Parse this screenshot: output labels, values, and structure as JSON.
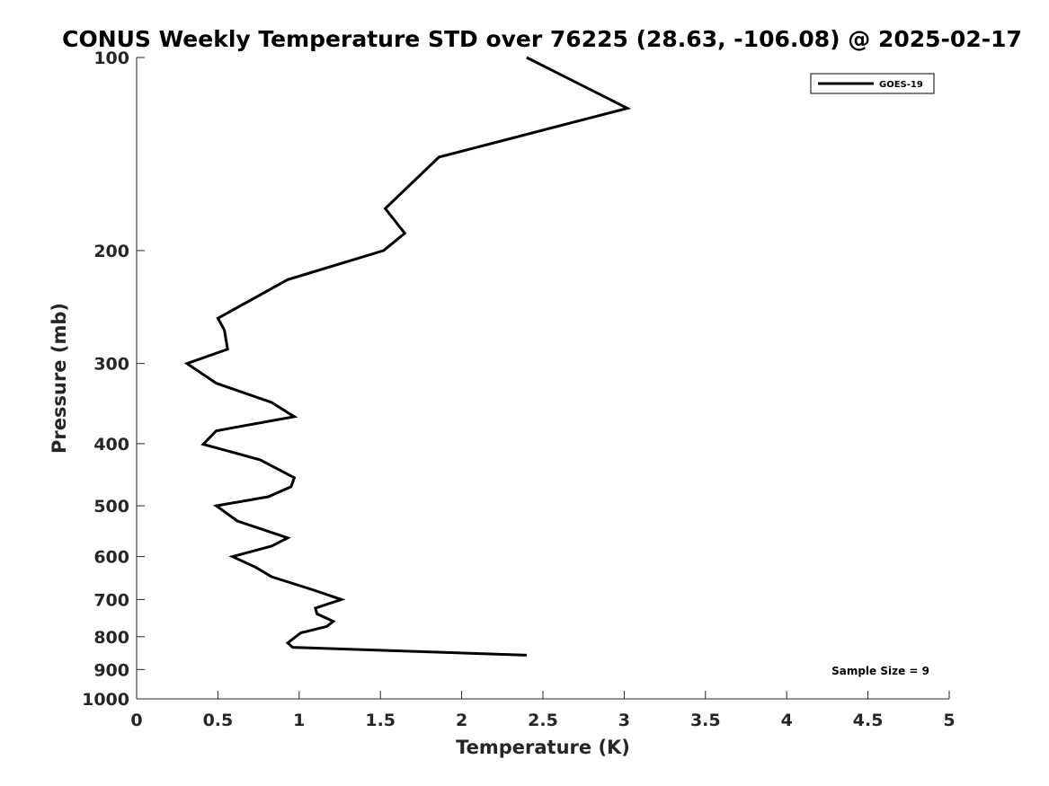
{
  "chart_data": {
    "type": "line",
    "title": "CONUS Weekly Temperature STD over 76225 (28.63, -106.08) @ 2025-02-17",
    "xlabel": "Temperature (K)",
    "ylabel": "Pressure (mb)",
    "xlim": [
      0,
      5
    ],
    "ylim": [
      100,
      1000
    ],
    "yscale": "log",
    "y_reversed": true,
    "x_ticks": [
      0,
      0.5,
      1,
      1.5,
      2,
      2.5,
      3,
      3.5,
      4,
      4.5,
      5
    ],
    "x_tick_labels": [
      "0",
      "0.5",
      "1",
      "1.5",
      "2",
      "2.5",
      "3",
      "3.5",
      "4",
      "4.5",
      "5"
    ],
    "y_ticks": [
      100,
      200,
      300,
      400,
      500,
      600,
      700,
      800,
      900,
      1000
    ],
    "y_tick_labels": [
      "100",
      "200",
      "300",
      "400",
      "500",
      "600",
      "700",
      "800",
      "900",
      "1000"
    ],
    "grid": false,
    "legend_position": "top-right",
    "annotation": "Sample Size = 9",
    "line_color": "#000000",
    "series": [
      {
        "name": "GOES-19",
        "x": [
          2.4,
          3.02,
          1.86,
          1.53,
          1.65,
          1.52,
          0.93,
          0.5,
          0.54,
          0.56,
          0.31,
          0.49,
          0.83,
          0.97,
          0.49,
          0.41,
          0.76,
          0.97,
          0.95,
          0.81,
          0.49,
          0.62,
          0.93,
          0.83,
          0.59,
          0.73,
          0.83,
          1.09,
          1.26,
          1.1,
          1.11,
          1.21,
          1.17,
          1.01,
          0.93,
          0.96,
          2.4
        ],
        "y": [
          100,
          120,
          143,
          172,
          188,
          200,
          222,
          255,
          266,
          285,
          300,
          322,
          345,
          363,
          382,
          401,
          424,
          452,
          467,
          484,
          500,
          528,
          561,
          578,
          600,
          623,
          645,
          677,
          700,
          722,
          737,
          757,
          771,
          789,
          818,
          831,
          855
        ]
      }
    ]
  }
}
